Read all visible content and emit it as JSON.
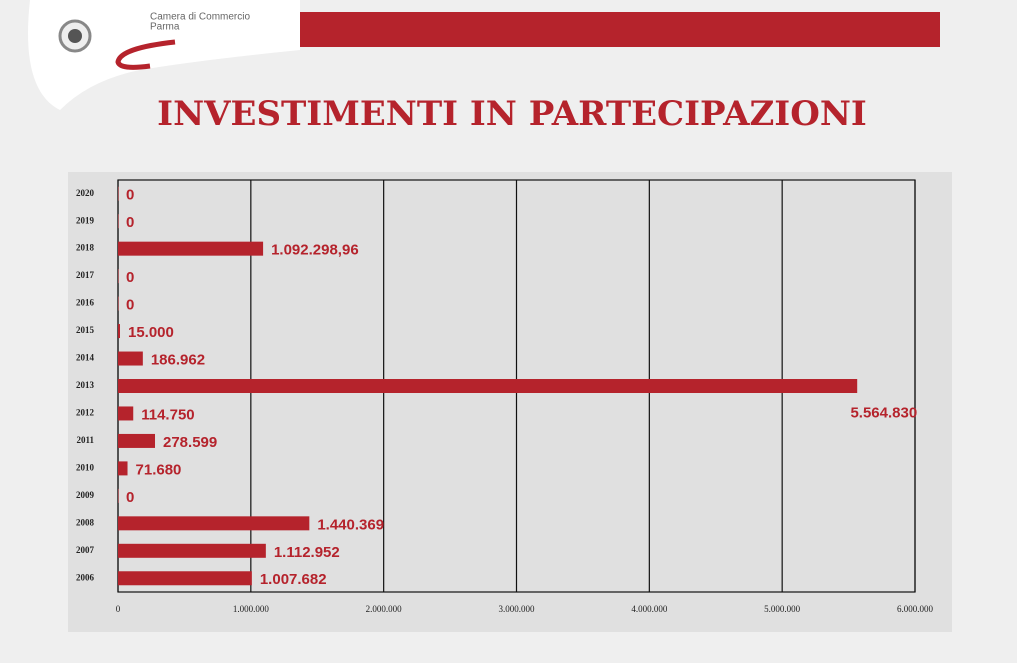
{
  "header": {
    "org_line1": "Camera di Commercio",
    "org_line2": "Parma"
  },
  "chart_data": {
    "type": "barh",
    "title": "INVESTIMENTI IN PARTECIPAZIONI",
    "categories": [
      "2020",
      "2019",
      "2018",
      "2017",
      "2016",
      "2015",
      "2014",
      "2013",
      "2012",
      "2011",
      "2010",
      "2009",
      "2008",
      "2007",
      "2006"
    ],
    "values": [
      0,
      0,
      1092298.96,
      0,
      0,
      15000,
      186962,
      5564830,
      114750,
      278599,
      71680,
      0,
      1440369,
      1112952,
      1007682
    ],
    "value_labels": [
      "0",
      "0",
      "1.092.298,96",
      "0",
      "0",
      "15.000",
      "186.962",
      "5.564.830",
      "114.750",
      "278.599",
      "71.680",
      "0",
      "1.440.369",
      "1.112.952",
      "1.007.682"
    ],
    "color": "#b5232c",
    "xlim": [
      0,
      6000000
    ],
    "xticks": [
      0,
      {
        "value": 1000000,
        "label": "1.000.000"
      },
      {
        "value": 2000000,
        "label": "2.000.000"
      },
      {
        "value": 3000000,
        "label": "3.000.000"
      },
      {
        "value": 4000000,
        "label": "4.000.000"
      },
      {
        "value": 5000000,
        "label": "5.000.000"
      },
      {
        "value": 6000000,
        "label": "6.000.000"
      }
    ],
    "grid": true
  }
}
